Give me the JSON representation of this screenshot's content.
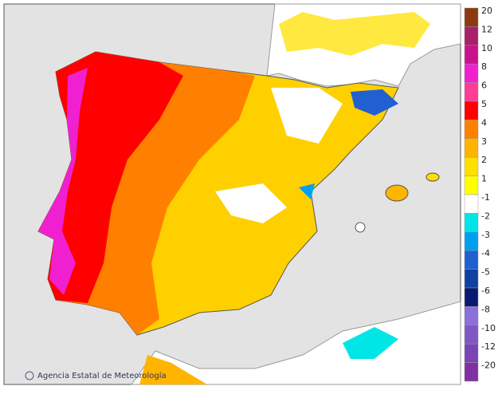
{
  "credit": "Agencia Estatal de Meteorología",
  "watermark": "aemet",
  "legend": {
    "items": [
      {
        "label": "20",
        "color": "#8b3a10"
      },
      {
        "label": "12",
        "color": "#a8206a"
      },
      {
        "label": "10",
        "color": "#c8148c"
      },
      {
        "label": "8",
        "color": "#f020d0"
      },
      {
        "label": "6",
        "color": "#ff3c96"
      },
      {
        "label": "5",
        "color": "#ff0000"
      },
      {
        "label": "4",
        "color": "#ff8000"
      },
      {
        "label": "3",
        "color": "#ffb400"
      },
      {
        "label": "2",
        "color": "#ffe000"
      },
      {
        "label": "1",
        "color": "#ffff00"
      },
      {
        "label": "-1",
        "color": "#ffffff"
      },
      {
        "label": "-2",
        "color": "#00e5e5"
      },
      {
        "label": "-3",
        "color": "#00a0f0"
      },
      {
        "label": "-4",
        "color": "#2060d0"
      },
      {
        "label": "-5",
        "color": "#1040a0"
      },
      {
        "label": "-6",
        "color": "#0a1a70"
      },
      {
        "label": "-8",
        "color": "#8a70d8"
      },
      {
        "label": "-10",
        "color": "#8058c4"
      },
      {
        "label": "-12",
        "color": "#7a44b4"
      },
      {
        "label": "-20",
        "color": "#8030a0"
      }
    ]
  }
}
